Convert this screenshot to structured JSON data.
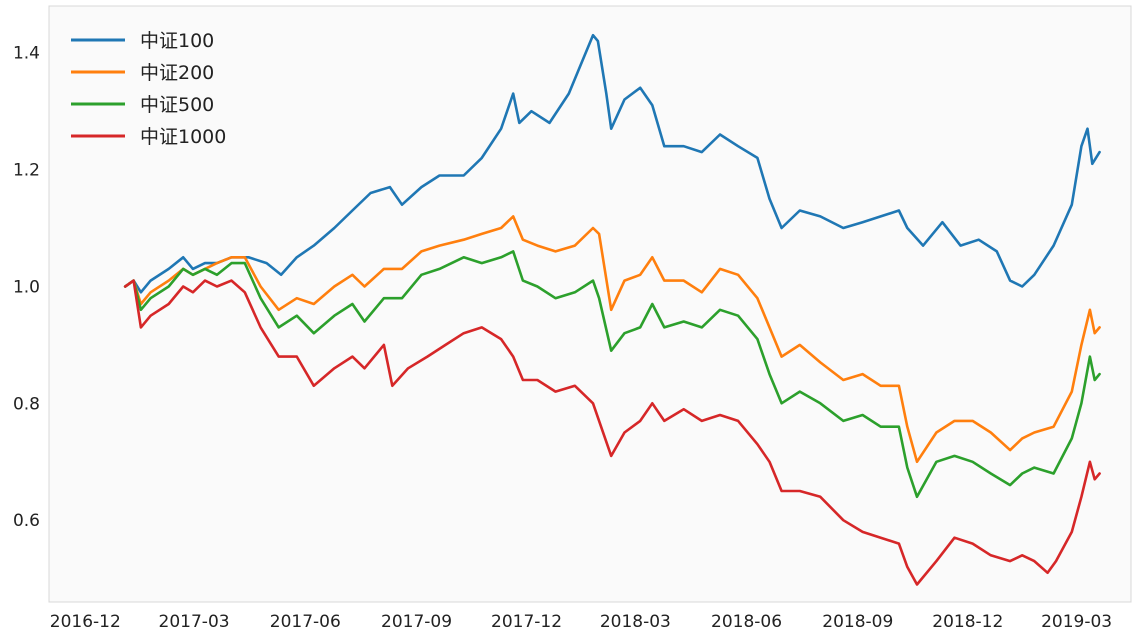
{
  "chart_data": {
    "type": "line",
    "title": "",
    "xlabel": "",
    "ylabel": "",
    "ylim": [
      0.46,
      1.48
    ],
    "grid": false,
    "legend_position": "top-left",
    "x_tick_labels": [
      "2016-12",
      "2017-03",
      "2017-06",
      "2017-09",
      "2017-12",
      "2018-03",
      "2018-06",
      "2018-09",
      "2018-12",
      "2019-03"
    ],
    "y_tick_labels": [
      "0.6",
      "0.8",
      "1.0",
      "1.2",
      "1.4"
    ],
    "y_ticks": [
      0.6,
      0.8,
      1.0,
      1.2,
      1.4
    ],
    "series": [
      {
        "name": "中证100",
        "color": "#1f77b4",
        "points": [
          [
            "2017-01-03",
            1.0
          ],
          [
            "2017-01-10",
            1.01
          ],
          [
            "2017-01-16",
            0.99
          ],
          [
            "2017-01-24",
            1.01
          ],
          [
            "2017-02-08",
            1.03
          ],
          [
            "2017-02-20",
            1.05
          ],
          [
            "2017-02-28",
            1.03
          ],
          [
            "2017-03-10",
            1.04
          ],
          [
            "2017-03-20",
            1.04
          ],
          [
            "2017-04-01",
            1.05
          ],
          [
            "2017-04-15",
            1.05
          ],
          [
            "2017-04-30",
            1.04
          ],
          [
            "2017-05-12",
            1.02
          ],
          [
            "2017-05-25",
            1.05
          ],
          [
            "2017-06-08",
            1.07
          ],
          [
            "2017-06-25",
            1.1
          ],
          [
            "2017-07-10",
            1.13
          ],
          [
            "2017-07-25",
            1.16
          ],
          [
            "2017-08-10",
            1.17
          ],
          [
            "2017-08-20",
            1.14
          ],
          [
            "2017-09-05",
            1.17
          ],
          [
            "2017-09-20",
            1.19
          ],
          [
            "2017-10-10",
            1.19
          ],
          [
            "2017-10-25",
            1.22
          ],
          [
            "2017-11-10",
            1.27
          ],
          [
            "2017-11-20",
            1.33
          ],
          [
            "2017-11-25",
            1.28
          ],
          [
            "2017-12-05",
            1.3
          ],
          [
            "2017-12-20",
            1.28
          ],
          [
            "2018-01-05",
            1.33
          ],
          [
            "2018-01-15",
            1.38
          ],
          [
            "2018-01-25",
            1.43
          ],
          [
            "2018-01-29",
            1.42
          ],
          [
            "2018-02-05",
            1.33
          ],
          [
            "2018-02-09",
            1.27
          ],
          [
            "2018-02-20",
            1.32
          ],
          [
            "2018-03-05",
            1.34
          ],
          [
            "2018-03-15",
            1.31
          ],
          [
            "2018-03-25",
            1.24
          ],
          [
            "2018-04-10",
            1.24
          ],
          [
            "2018-04-25",
            1.23
          ],
          [
            "2018-05-10",
            1.26
          ],
          [
            "2018-05-25",
            1.24
          ],
          [
            "2018-06-10",
            1.22
          ],
          [
            "2018-06-20",
            1.15
          ],
          [
            "2018-06-30",
            1.1
          ],
          [
            "2018-07-15",
            1.13
          ],
          [
            "2018-08-01",
            1.12
          ],
          [
            "2018-08-20",
            1.1
          ],
          [
            "2018-09-05",
            1.11
          ],
          [
            "2018-09-20",
            1.12
          ],
          [
            "2018-10-05",
            1.13
          ],
          [
            "2018-10-12",
            1.1
          ],
          [
            "2018-10-25",
            1.07
          ],
          [
            "2018-11-10",
            1.11
          ],
          [
            "2018-11-25",
            1.07
          ],
          [
            "2018-12-10",
            1.08
          ],
          [
            "2018-12-25",
            1.06
          ],
          [
            "2019-01-05",
            1.01
          ],
          [
            "2019-01-15",
            1.0
          ],
          [
            "2019-01-25",
            1.02
          ],
          [
            "2019-02-10",
            1.07
          ],
          [
            "2019-02-25",
            1.14
          ],
          [
            "2019-03-05",
            1.24
          ],
          [
            "2019-03-10",
            1.27
          ],
          [
            "2019-03-14",
            1.21
          ],
          [
            "2019-03-20",
            1.23
          ]
        ]
      },
      {
        "name": "中证200",
        "color": "#ff7f0e",
        "points": [
          [
            "2017-01-03",
            1.0
          ],
          [
            "2017-01-10",
            1.01
          ],
          [
            "2017-01-16",
            0.97
          ],
          [
            "2017-01-24",
            0.99
          ],
          [
            "2017-02-08",
            1.01
          ],
          [
            "2017-02-20",
            1.03
          ],
          [
            "2017-02-28",
            1.02
          ],
          [
            "2017-03-10",
            1.03
          ],
          [
            "2017-03-20",
            1.04
          ],
          [
            "2017-04-01",
            1.05
          ],
          [
            "2017-04-12",
            1.05
          ],
          [
            "2017-04-25",
            1.0
          ],
          [
            "2017-05-10",
            0.96
          ],
          [
            "2017-05-25",
            0.98
          ],
          [
            "2017-06-08",
            0.97
          ],
          [
            "2017-06-25",
            1.0
          ],
          [
            "2017-07-10",
            1.02
          ],
          [
            "2017-07-20",
            1.0
          ],
          [
            "2017-08-05",
            1.03
          ],
          [
            "2017-08-20",
            1.03
          ],
          [
            "2017-09-05",
            1.06
          ],
          [
            "2017-09-20",
            1.07
          ],
          [
            "2017-10-10",
            1.08
          ],
          [
            "2017-10-25",
            1.09
          ],
          [
            "2017-11-10",
            1.1
          ],
          [
            "2017-11-20",
            1.12
          ],
          [
            "2017-11-28",
            1.08
          ],
          [
            "2017-12-10",
            1.07
          ],
          [
            "2017-12-25",
            1.06
          ],
          [
            "2018-01-10",
            1.07
          ],
          [
            "2018-01-25",
            1.1
          ],
          [
            "2018-01-30",
            1.09
          ],
          [
            "2018-02-09",
            0.96
          ],
          [
            "2018-02-20",
            1.01
          ],
          [
            "2018-03-05",
            1.02
          ],
          [
            "2018-03-15",
            1.05
          ],
          [
            "2018-03-25",
            1.01
          ],
          [
            "2018-04-10",
            1.01
          ],
          [
            "2018-04-25",
            0.99
          ],
          [
            "2018-05-10",
            1.03
          ],
          [
            "2018-05-25",
            1.02
          ],
          [
            "2018-06-10",
            0.98
          ],
          [
            "2018-06-20",
            0.93
          ],
          [
            "2018-06-30",
            0.88
          ],
          [
            "2018-07-15",
            0.9
          ],
          [
            "2018-08-01",
            0.87
          ],
          [
            "2018-08-20",
            0.84
          ],
          [
            "2018-09-05",
            0.85
          ],
          [
            "2018-09-20",
            0.83
          ],
          [
            "2018-10-05",
            0.83
          ],
          [
            "2018-10-12",
            0.76
          ],
          [
            "2018-10-20",
            0.7
          ],
          [
            "2018-11-05",
            0.75
          ],
          [
            "2018-11-20",
            0.77
          ],
          [
            "2018-12-05",
            0.77
          ],
          [
            "2018-12-20",
            0.75
          ],
          [
            "2019-01-05",
            0.72
          ],
          [
            "2019-01-15",
            0.74
          ],
          [
            "2019-01-25",
            0.75
          ],
          [
            "2019-02-10",
            0.76
          ],
          [
            "2019-02-25",
            0.82
          ],
          [
            "2019-03-05",
            0.9
          ],
          [
            "2019-03-12",
            0.96
          ],
          [
            "2019-03-16",
            0.92
          ],
          [
            "2019-03-20",
            0.93
          ]
        ]
      },
      {
        "name": "中证500",
        "color": "#2ca02c",
        "points": [
          [
            "2017-01-03",
            1.0
          ],
          [
            "2017-01-10",
            1.01
          ],
          [
            "2017-01-16",
            0.96
          ],
          [
            "2017-01-24",
            0.98
          ],
          [
            "2017-02-08",
            1.0
          ],
          [
            "2017-02-20",
            1.03
          ],
          [
            "2017-02-28",
            1.02
          ],
          [
            "2017-03-10",
            1.03
          ],
          [
            "2017-03-20",
            1.02
          ],
          [
            "2017-04-01",
            1.04
          ],
          [
            "2017-04-12",
            1.04
          ],
          [
            "2017-04-25",
            0.98
          ],
          [
            "2017-05-10",
            0.93
          ],
          [
            "2017-05-25",
            0.95
          ],
          [
            "2017-06-08",
            0.92
          ],
          [
            "2017-06-25",
            0.95
          ],
          [
            "2017-07-10",
            0.97
          ],
          [
            "2017-07-20",
            0.94
          ],
          [
            "2017-08-05",
            0.98
          ],
          [
            "2017-08-20",
            0.98
          ],
          [
            "2017-09-05",
            1.02
          ],
          [
            "2017-09-20",
            1.03
          ],
          [
            "2017-10-10",
            1.05
          ],
          [
            "2017-10-25",
            1.04
          ],
          [
            "2017-11-10",
            1.05
          ],
          [
            "2017-11-20",
            1.06
          ],
          [
            "2017-11-28",
            1.01
          ],
          [
            "2017-12-10",
            1.0
          ],
          [
            "2017-12-25",
            0.98
          ],
          [
            "2018-01-10",
            0.99
          ],
          [
            "2018-01-25",
            1.01
          ],
          [
            "2018-01-30",
            0.98
          ],
          [
            "2018-02-09",
            0.89
          ],
          [
            "2018-02-20",
            0.92
          ],
          [
            "2018-03-05",
            0.93
          ],
          [
            "2018-03-15",
            0.97
          ],
          [
            "2018-03-25",
            0.93
          ],
          [
            "2018-04-10",
            0.94
          ],
          [
            "2018-04-25",
            0.93
          ],
          [
            "2018-05-10",
            0.96
          ],
          [
            "2018-05-25",
            0.95
          ],
          [
            "2018-06-10",
            0.91
          ],
          [
            "2018-06-20",
            0.85
          ],
          [
            "2018-06-30",
            0.8
          ],
          [
            "2018-07-15",
            0.82
          ],
          [
            "2018-08-01",
            0.8
          ],
          [
            "2018-08-20",
            0.77
          ],
          [
            "2018-09-05",
            0.78
          ],
          [
            "2018-09-20",
            0.76
          ],
          [
            "2018-10-05",
            0.76
          ],
          [
            "2018-10-12",
            0.69
          ],
          [
            "2018-10-20",
            0.64
          ],
          [
            "2018-11-05",
            0.7
          ],
          [
            "2018-11-20",
            0.71
          ],
          [
            "2018-12-05",
            0.7
          ],
          [
            "2018-12-20",
            0.68
          ],
          [
            "2019-01-05",
            0.66
          ],
          [
            "2019-01-15",
            0.68
          ],
          [
            "2019-01-25",
            0.69
          ],
          [
            "2019-02-10",
            0.68
          ],
          [
            "2019-02-25",
            0.74
          ],
          [
            "2019-03-05",
            0.8
          ],
          [
            "2019-03-12",
            0.88
          ],
          [
            "2019-03-16",
            0.84
          ],
          [
            "2019-03-20",
            0.85
          ]
        ]
      },
      {
        "name": "中证1000",
        "color": "#d62728",
        "points": [
          [
            "2017-01-03",
            1.0
          ],
          [
            "2017-01-10",
            1.01
          ],
          [
            "2017-01-16",
            0.93
          ],
          [
            "2017-01-24",
            0.95
          ],
          [
            "2017-02-08",
            0.97
          ],
          [
            "2017-02-20",
            1.0
          ],
          [
            "2017-02-28",
            0.99
          ],
          [
            "2017-03-10",
            1.01
          ],
          [
            "2017-03-20",
            1.0
          ],
          [
            "2017-04-01",
            1.01
          ],
          [
            "2017-04-12",
            0.99
          ],
          [
            "2017-04-25",
            0.93
          ],
          [
            "2017-05-10",
            0.88
          ],
          [
            "2017-05-25",
            0.88
          ],
          [
            "2017-06-08",
            0.83
          ],
          [
            "2017-06-25",
            0.86
          ],
          [
            "2017-07-10",
            0.88
          ],
          [
            "2017-07-20",
            0.86
          ],
          [
            "2017-08-05",
            0.9
          ],
          [
            "2017-08-12",
            0.83
          ],
          [
            "2017-08-25",
            0.86
          ],
          [
            "2017-09-10",
            0.88
          ],
          [
            "2017-09-25",
            0.9
          ],
          [
            "2017-10-10",
            0.92
          ],
          [
            "2017-10-25",
            0.93
          ],
          [
            "2017-11-10",
            0.91
          ],
          [
            "2017-11-20",
            0.88
          ],
          [
            "2017-11-28",
            0.84
          ],
          [
            "2017-12-10",
            0.84
          ],
          [
            "2017-12-25",
            0.82
          ],
          [
            "2018-01-10",
            0.83
          ],
          [
            "2018-01-25",
            0.8
          ],
          [
            "2018-02-09",
            0.71
          ],
          [
            "2018-02-20",
            0.75
          ],
          [
            "2018-03-05",
            0.77
          ],
          [
            "2018-03-15",
            0.8
          ],
          [
            "2018-03-25",
            0.77
          ],
          [
            "2018-04-10",
            0.79
          ],
          [
            "2018-04-25",
            0.77
          ],
          [
            "2018-05-10",
            0.78
          ],
          [
            "2018-05-25",
            0.77
          ],
          [
            "2018-06-10",
            0.73
          ],
          [
            "2018-06-20",
            0.7
          ],
          [
            "2018-06-30",
            0.65
          ],
          [
            "2018-07-15",
            0.65
          ],
          [
            "2018-08-01",
            0.64
          ],
          [
            "2018-08-20",
            0.6
          ],
          [
            "2018-09-05",
            0.58
          ],
          [
            "2018-09-20",
            0.57
          ],
          [
            "2018-10-05",
            0.56
          ],
          [
            "2018-10-12",
            0.52
          ],
          [
            "2018-10-20",
            0.49
          ],
          [
            "2018-11-05",
            0.53
          ],
          [
            "2018-11-20",
            0.57
          ],
          [
            "2018-12-05",
            0.56
          ],
          [
            "2018-12-20",
            0.54
          ],
          [
            "2019-01-05",
            0.53
          ],
          [
            "2019-01-15",
            0.54
          ],
          [
            "2019-01-25",
            0.53
          ],
          [
            "2019-02-05",
            0.51
          ],
          [
            "2019-02-12",
            0.53
          ],
          [
            "2019-02-25",
            0.58
          ],
          [
            "2019-03-05",
            0.64
          ],
          [
            "2019-03-12",
            0.7
          ],
          [
            "2019-03-16",
            0.67
          ],
          [
            "2019-03-20",
            0.68
          ]
        ]
      }
    ]
  }
}
